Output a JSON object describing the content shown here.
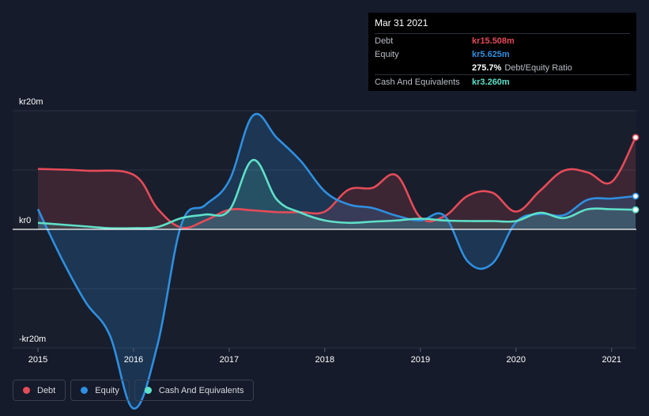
{
  "tooltip": {
    "date": "Mar 31 2021",
    "rows": [
      {
        "label": "Debt",
        "value": "kr15.508m",
        "color": "#e64b58"
      },
      {
        "label": "Equity",
        "value": "kr5.625m",
        "color": "#2f8fe0"
      },
      {
        "label": "",
        "value": "275.7%",
        "extra": "Debt/Equity Ratio",
        "color": "#ffffff"
      },
      {
        "label": "Cash And Equivalents",
        "value": "kr3.260m",
        "color": "#5fe0c8"
      }
    ]
  },
  "legend": [
    {
      "label": "Debt",
      "color": "#e64b58"
    },
    {
      "label": "Equity",
      "color": "#2f8fe0"
    },
    {
      "label": "Cash And Equivalents",
      "color": "#5fe0c8"
    }
  ],
  "chart_data": {
    "type": "area",
    "ylim": [
      -20,
      20
    ],
    "xlim": [
      2015.0,
      2021.25
    ],
    "y_tick_labels": [
      {
        "value": 20,
        "label": "kr20m"
      },
      {
        "value": 0,
        "label": "kr0"
      },
      {
        "value": -20,
        "label": "-kr20m"
      }
    ],
    "x_tick_labels": [
      "2015",
      "2016",
      "2017",
      "2018",
      "2019",
      "2020",
      "2021"
    ],
    "units": "kr millions",
    "series": [
      {
        "name": "Debt",
        "color": "#e64b58",
        "x": [
          2015.0,
          2015.5,
          2016.0,
          2016.25,
          2016.5,
          2016.75,
          2017.0,
          2017.25,
          2017.5,
          2017.75,
          2018.0,
          2018.25,
          2018.5,
          2018.75,
          2019.0,
          2019.25,
          2019.5,
          2019.75,
          2020.0,
          2020.25,
          2020.5,
          2020.75,
          2021.0,
          2021.25
        ],
        "values": [
          10.2,
          9.9,
          9.2,
          3.5,
          0.3,
          1.5,
          3.3,
          3.2,
          2.9,
          2.9,
          3.0,
          6.7,
          7.0,
          9.1,
          2.0,
          2.2,
          5.7,
          6.2,
          3.0,
          6.5,
          9.9,
          9.6,
          8.0,
          15.5
        ]
      },
      {
        "name": "Equity",
        "color": "#2f8fe0",
        "x": [
          2015.0,
          2015.25,
          2015.5,
          2015.75,
          2016.0,
          2016.25,
          2016.5,
          2016.75,
          2017.0,
          2017.25,
          2017.5,
          2017.75,
          2018.0,
          2018.25,
          2018.5,
          2018.75,
          2019.0,
          2019.25,
          2019.5,
          2019.75,
          2020.0,
          2020.25,
          2020.5,
          2020.75,
          2021.0,
          2021.25
        ],
        "values": [
          3.4,
          -5.0,
          -12.3,
          -17.8,
          -30.2,
          -19.5,
          0.8,
          4.1,
          8.2,
          19.2,
          15.4,
          11.5,
          6.4,
          4.2,
          3.6,
          2.3,
          1.5,
          2.3,
          -5.5,
          -5.8,
          1.2,
          2.6,
          2.4,
          5.0,
          5.2,
          5.6
        ]
      },
      {
        "name": "Cash And Equivalents",
        "color": "#5fe0c8",
        "x": [
          2015.0,
          2015.25,
          2015.5,
          2015.75,
          2016.0,
          2016.25,
          2016.5,
          2016.75,
          2017.0,
          2017.25,
          2017.5,
          2017.75,
          2018.0,
          2018.25,
          2018.5,
          2018.75,
          2019.0,
          2019.25,
          2019.5,
          2019.75,
          2020.0,
          2020.25,
          2020.5,
          2020.75,
          2021.0,
          2021.25
        ],
        "values": [
          1.1,
          0.8,
          0.5,
          0.2,
          0.2,
          0.4,
          1.9,
          2.5,
          3.2,
          11.7,
          5.0,
          2.8,
          1.5,
          1.1,
          1.3,
          1.5,
          1.8,
          1.5,
          1.4,
          1.4,
          1.4,
          2.8,
          1.9,
          3.4,
          3.4,
          3.3
        ]
      }
    ]
  }
}
